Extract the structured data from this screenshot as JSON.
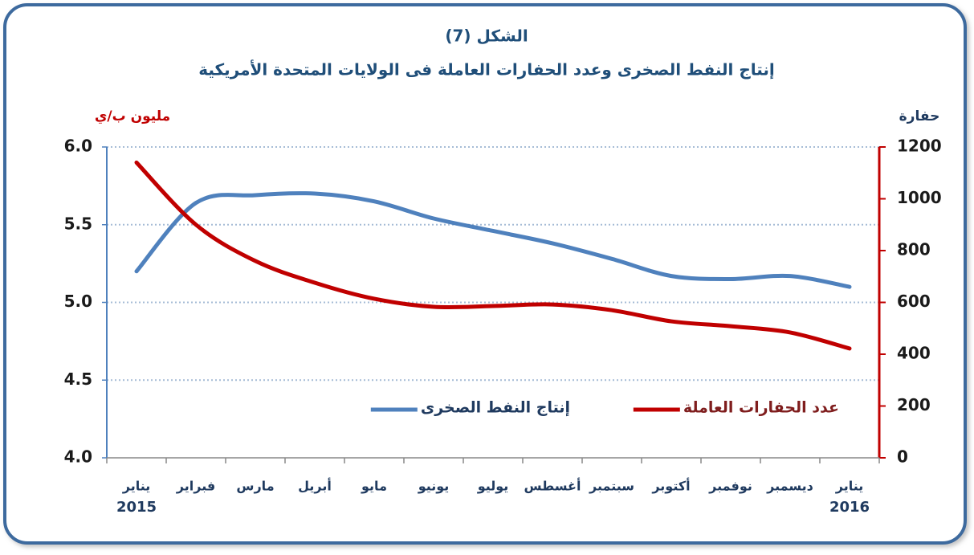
{
  "chart_data": {
    "type": "line",
    "title": "الشكل (7)",
    "subtitle": "إنتاج النفط الصخرى وعدد الحفارات العاملة فى الولايات المتحدة الأمريكية",
    "y_label": "مليون ب/ي",
    "y2_label": "حفارة",
    "categories": [
      "يناير",
      "فبراير",
      "مارس",
      "أبريل",
      "مايو",
      "يونيو",
      "يوليو",
      "أغسطس",
      "سبتمبر",
      "أكتوبر",
      "نوفمبر",
      "ديسمبر",
      "يناير"
    ],
    "x_group_labels": [
      "2015",
      "2016"
    ],
    "series": [
      {
        "name": "إنتاج النفط الصخرى",
        "color": "#4f81bd",
        "axis": "y",
        "values": [
          5.2,
          5.64,
          5.69,
          5.7,
          5.65,
          5.54,
          5.46,
          5.38,
          5.28,
          5.17,
          5.15,
          5.17,
          5.1
        ]
      },
      {
        "name": "عدد الحفارات العاملة",
        "color": "#c00000",
        "axis": "y2",
        "values": [
          1140,
          900,
          760,
          676,
          614,
          583,
          586,
          592,
          570,
          527,
          508,
          484,
          422
        ]
      }
    ],
    "ylim": [
      4,
      6
    ],
    "yticks": [
      {
        "value": 4,
        "label": "4.0"
      },
      {
        "value": 4.5,
        "label": "4.5"
      },
      {
        "value": 5,
        "label": "5.0"
      },
      {
        "value": 5.5,
        "label": "5.5"
      },
      {
        "value": 6,
        "label": "6.0"
      }
    ],
    "y2lim": [
      0,
      1200
    ],
    "y2ticks": [
      0,
      200,
      400,
      600,
      800,
      1000,
      1200
    ],
    "grid": true
  }
}
